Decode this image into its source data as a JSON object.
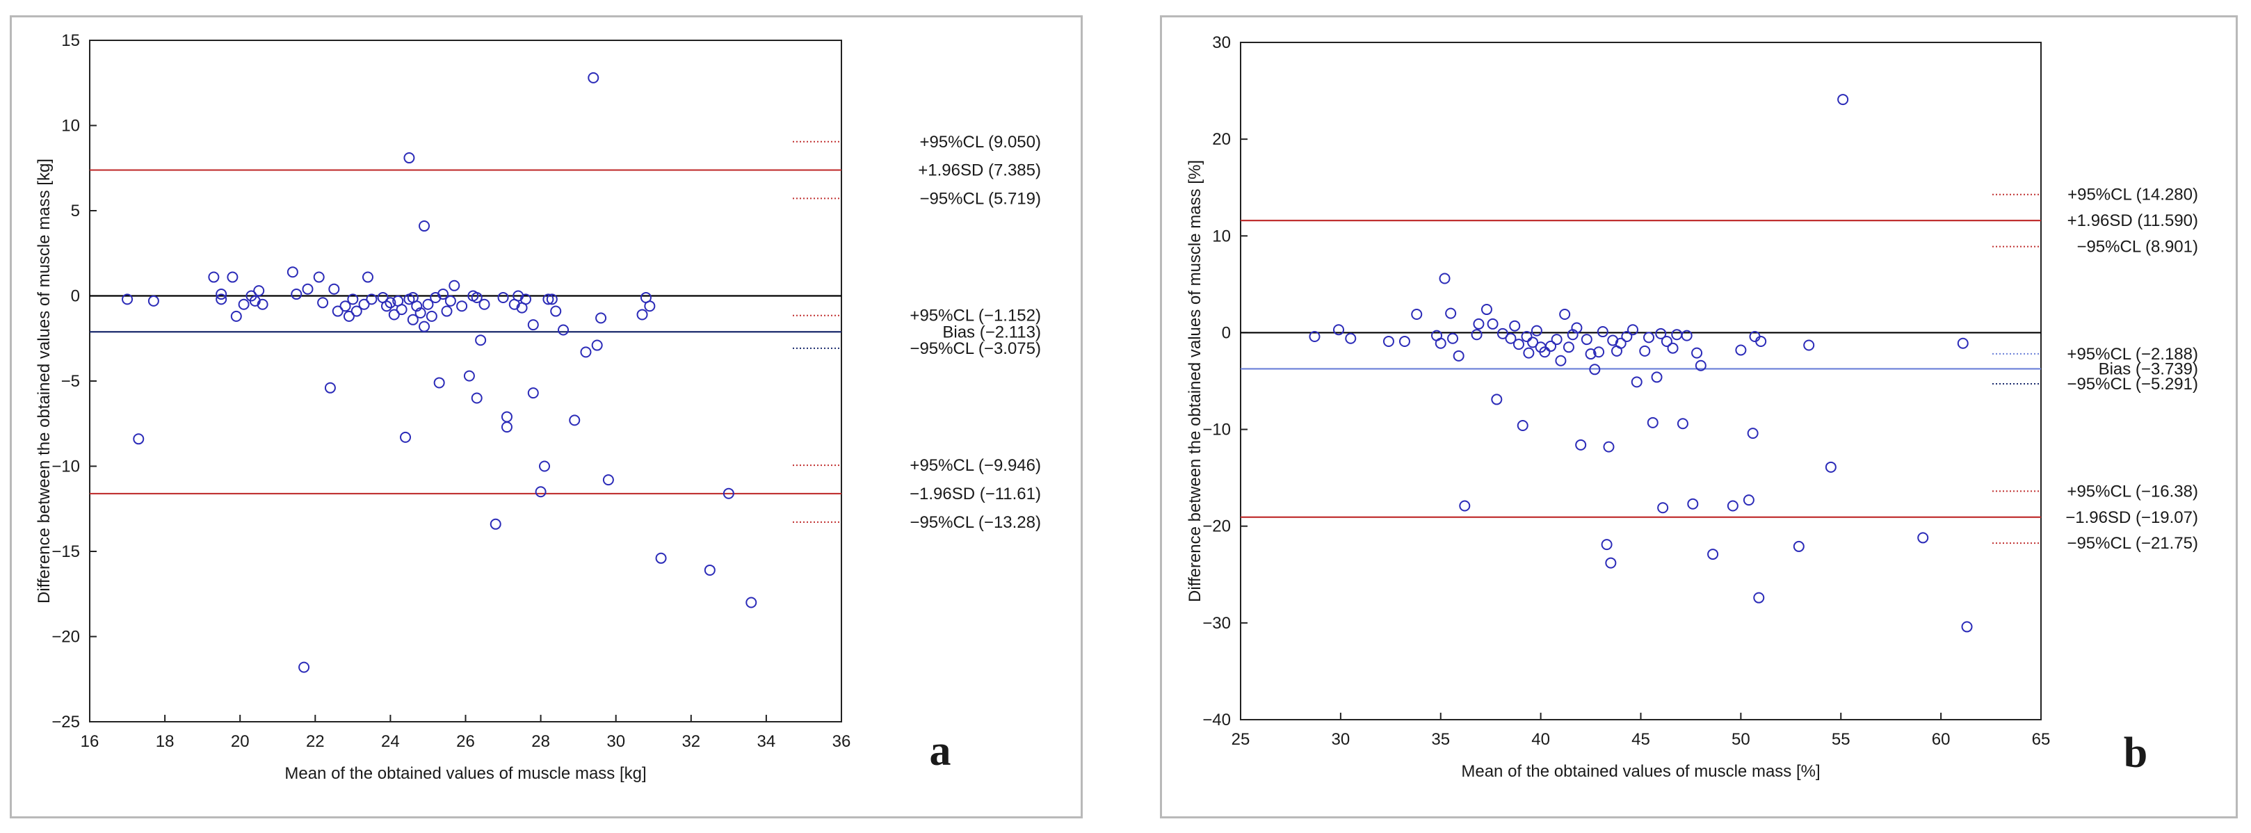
{
  "chart_data": [
    {
      "type": "scatter",
      "panel_label": "a",
      "xlabel": "Mean of the obtained values of muscle mass [kg]",
      "ylabel": "Difference between the obtained values of muscle mass [kg]",
      "xlim": [
        16,
        36
      ],
      "ylim": [
        -25,
        15
      ],
      "xticks": [
        16,
        18,
        20,
        22,
        24,
        26,
        28,
        30,
        32,
        34,
        36
      ],
      "yticks": [
        15,
        10,
        5,
        0,
        -5,
        -10,
        -15,
        -20,
        -25
      ],
      "grid": false,
      "colors": {
        "points": "#2b2bb8",
        "limits": "#c03030",
        "bias": "#1a2a6c",
        "zero": "#000000"
      },
      "lines": [
        {
          "name": "upper-limit",
          "y": 7.385,
          "kind": "limit"
        },
        {
          "name": "zero",
          "y": 0,
          "kind": "zero"
        },
        {
          "name": "bias",
          "y": -2.113,
          "kind": "bias"
        },
        {
          "name": "lower-limit",
          "y": -11.61,
          "kind": "limit"
        }
      ],
      "ci_markers": [
        {
          "y": 9.05,
          "color": "#c03030"
        },
        {
          "y": 5.719,
          "color": "#c03030"
        },
        {
          "y": -1.152,
          "color": "#c03030"
        },
        {
          "y": -3.075,
          "color": "#1a2a6c"
        },
        {
          "y": -9.946,
          "color": "#c03030"
        },
        {
          "y": -13.28,
          "color": "#c03030"
        }
      ],
      "annotations": [
        {
          "text": "+95%CL (9.050)",
          "y": 9.05
        },
        {
          "text": "+1.96SD (7.385)",
          "y": 7.385
        },
        {
          "text": "−95%CL (5.719)",
          "y": 5.719
        },
        {
          "text": "+95%CL (−1.152)",
          "y": -1.152
        },
        {
          "text": "Bias (−2.113)",
          "y": -2.113
        },
        {
          "text": "−95%CL (−3.075)",
          "y": -3.075
        },
        {
          "text": "+95%CL (−9.946)",
          "y": -9.946
        },
        {
          "text": "−1.96SD (−11.61)",
          "y": -11.61
        },
        {
          "text": "−95%CL (−13.28)",
          "y": -13.28
        }
      ],
      "points": [
        [
          17.0,
          -0.2
        ],
        [
          17.3,
          -8.4
        ],
        [
          17.7,
          -0.3
        ],
        [
          19.3,
          1.1
        ],
        [
          19.5,
          0.1
        ],
        [
          19.5,
          -0.2
        ],
        [
          19.8,
          1.1
        ],
        [
          19.9,
          -1.2
        ],
        [
          20.1,
          -0.5
        ],
        [
          20.3,
          0.0
        ],
        [
          20.4,
          -0.3
        ],
        [
          20.5,
          0.3
        ],
        [
          20.6,
          -0.5
        ],
        [
          21.4,
          1.4
        ],
        [
          21.5,
          0.1
        ],
        [
          21.8,
          0.4
        ],
        [
          21.7,
          -21.8
        ],
        [
          22.1,
          1.1
        ],
        [
          22.2,
          -0.4
        ],
        [
          22.4,
          -5.4
        ],
        [
          22.5,
          0.4
        ],
        [
          22.6,
          -0.9
        ],
        [
          22.8,
          -0.6
        ],
        [
          22.9,
          -1.2
        ],
        [
          23.0,
          -0.2
        ],
        [
          23.1,
          -0.9
        ],
        [
          23.3,
          -0.5
        ],
        [
          23.4,
          1.1
        ],
        [
          23.5,
          -0.2
        ],
        [
          23.8,
          -0.1
        ],
        [
          23.9,
          -0.6
        ],
        [
          24.0,
          -0.4
        ],
        [
          24.1,
          -1.1
        ],
        [
          24.2,
          -0.3
        ],
        [
          24.3,
          -0.8
        ],
        [
          24.4,
          -8.3
        ],
        [
          24.5,
          -0.2
        ],
        [
          24.5,
          8.1
        ],
        [
          24.6,
          -0.1
        ],
        [
          24.6,
          -1.4
        ],
        [
          24.7,
          -0.6
        ],
        [
          24.8,
          -1.0
        ],
        [
          24.9,
          -1.8
        ],
        [
          24.9,
          4.1
        ],
        [
          25.0,
          -0.5
        ],
        [
          25.1,
          -1.2
        ],
        [
          25.2,
          -0.1
        ],
        [
          25.3,
          -5.1
        ],
        [
          25.4,
          0.1
        ],
        [
          25.5,
          -0.9
        ],
        [
          25.6,
          -0.3
        ],
        [
          25.7,
          0.6
        ],
        [
          25.9,
          -0.6
        ],
        [
          26.1,
          -4.7
        ],
        [
          26.2,
          0.0
        ],
        [
          26.3,
          -0.1
        ],
        [
          26.3,
          -6.0
        ],
        [
          26.4,
          -2.6
        ],
        [
          26.5,
          -0.5
        ],
        [
          26.8,
          -13.4
        ],
        [
          27.0,
          -0.1
        ],
        [
          27.1,
          -7.1
        ],
        [
          27.1,
          -7.7
        ],
        [
          27.3,
          -0.5
        ],
        [
          27.4,
          0.0
        ],
        [
          27.5,
          -0.7
        ],
        [
          27.6,
          -0.2
        ],
        [
          27.8,
          -1.7
        ],
        [
          27.8,
          -5.7
        ],
        [
          28.0,
          -11.5
        ],
        [
          28.1,
          -10.0
        ],
        [
          28.2,
          -0.2
        ],
        [
          28.3,
          -0.2
        ],
        [
          28.4,
          -0.9
        ],
        [
          28.6,
          -2.0
        ],
        [
          28.9,
          -7.3
        ],
        [
          29.2,
          -3.3
        ],
        [
          29.4,
          12.8
        ],
        [
          29.5,
          -2.9
        ],
        [
          29.6,
          -1.3
        ],
        [
          29.8,
          -10.8
        ],
        [
          30.7,
          -1.1
        ],
        [
          30.8,
          -0.1
        ],
        [
          30.9,
          -0.6
        ],
        [
          31.2,
          -15.4
        ],
        [
          32.5,
          -16.1
        ],
        [
          33.0,
          -11.6
        ],
        [
          33.6,
          -18.0
        ]
      ],
      "title": ""
    },
    {
      "type": "scatter",
      "panel_label": "b",
      "xlabel": "Mean of the obtained values of muscle mass [%]",
      "ylabel": "Difference between the obtained values of muscle mass [%]",
      "xlim": [
        25,
        65
      ],
      "ylim": [
        -40,
        30
      ],
      "xticks": [
        25,
        30,
        35,
        40,
        45,
        50,
        55,
        60,
        65
      ],
      "yticks": [
        30,
        20,
        10,
        0,
        -10,
        -20,
        -30,
        -40
      ],
      "grid": false,
      "colors": {
        "points": "#2b2bb8",
        "limits": "#c03030",
        "bias": "#6a7fd8",
        "zero": "#000000"
      },
      "lines": [
        {
          "name": "upper-limit",
          "y": 11.59,
          "kind": "limit"
        },
        {
          "name": "zero",
          "y": 0,
          "kind": "zero"
        },
        {
          "name": "bias",
          "y": -3.739,
          "kind": "bias"
        },
        {
          "name": "lower-limit",
          "y": -19.07,
          "kind": "limit"
        }
      ],
      "ci_markers": [
        {
          "y": 14.28,
          "color": "#c03030"
        },
        {
          "y": 8.901,
          "color": "#c03030"
        },
        {
          "y": -2.188,
          "color": "#6a7fd8"
        },
        {
          "y": -5.291,
          "color": "#1a2a6c"
        },
        {
          "y": -16.38,
          "color": "#c03030"
        },
        {
          "y": -21.75,
          "color": "#c03030"
        }
      ],
      "annotations": [
        {
          "text": "+95%CL (14.280)",
          "y": 14.28
        },
        {
          "text": "+1.96SD (11.590)",
          "y": 11.59
        },
        {
          "text": "−95%CL (8.901)",
          "y": 8.901
        },
        {
          "text": "+95%CL (−2.188)",
          "y": -2.188
        },
        {
          "text": "Bias (−3.739)",
          "y": -3.739
        },
        {
          "text": "−95%CL (−5.291)",
          "y": -5.291
        },
        {
          "text": "+95%CL (−16.38)",
          "y": -16.38
        },
        {
          "text": "−1.96SD (−19.07)",
          "y": -19.07
        },
        {
          "text": "−95%CL (−21.75)",
          "y": -21.75
        }
      ],
      "points": [
        [
          28.7,
          -0.4
        ],
        [
          29.9,
          0.3
        ],
        [
          30.5,
          -0.6
        ],
        [
          32.4,
          -0.9
        ],
        [
          33.2,
          -0.9
        ],
        [
          33.8,
          1.9
        ],
        [
          34.8,
          -0.3
        ],
        [
          35.0,
          -1.1
        ],
        [
          35.2,
          5.6
        ],
        [
          35.5,
          2.0
        ],
        [
          35.6,
          -0.6
        ],
        [
          35.9,
          -2.4
        ],
        [
          36.2,
          -17.9
        ],
        [
          36.8,
          -0.2
        ],
        [
          36.9,
          0.9
        ],
        [
          37.3,
          2.4
        ],
        [
          37.6,
          0.9
        ],
        [
          37.8,
          -6.9
        ],
        [
          38.1,
          -0.1
        ],
        [
          38.5,
          -0.6
        ],
        [
          38.7,
          0.7
        ],
        [
          38.9,
          -1.2
        ],
        [
          39.1,
          -9.6
        ],
        [
          39.3,
          -0.4
        ],
        [
          39.4,
          -2.1
        ],
        [
          39.6,
          -1.0
        ],
        [
          39.8,
          0.2
        ],
        [
          40.0,
          -1.5
        ],
        [
          40.2,
          -2.0
        ],
        [
          40.5,
          -1.4
        ],
        [
          40.8,
          -0.7
        ],
        [
          41.0,
          -2.9
        ],
        [
          41.2,
          1.9
        ],
        [
          41.4,
          -1.5
        ],
        [
          41.6,
          -0.2
        ],
        [
          41.8,
          0.5
        ],
        [
          42.0,
          -11.6
        ],
        [
          42.3,
          -0.7
        ],
        [
          42.5,
          -2.2
        ],
        [
          42.7,
          -3.8
        ],
        [
          42.9,
          -2.0
        ],
        [
          43.1,
          0.1
        ],
        [
          43.3,
          -21.9
        ],
        [
          43.5,
          -23.8
        ],
        [
          43.4,
          -11.8
        ],
        [
          43.6,
          -0.8
        ],
        [
          43.8,
          -1.9
        ],
        [
          44.0,
          -1.1
        ],
        [
          44.3,
          -0.4
        ],
        [
          44.6,
          0.3
        ],
        [
          44.8,
          -5.1
        ],
        [
          45.2,
          -1.9
        ],
        [
          45.4,
          -0.5
        ],
        [
          45.6,
          -9.3
        ],
        [
          45.8,
          -4.6
        ],
        [
          46.0,
          -0.1
        ],
        [
          46.1,
          -18.1
        ],
        [
          46.3,
          -0.9
        ],
        [
          46.6,
          -1.6
        ],
        [
          46.8,
          -0.2
        ],
        [
          47.1,
          -9.4
        ],
        [
          47.3,
          -0.3
        ],
        [
          47.6,
          -17.7
        ],
        [
          47.8,
          -2.1
        ],
        [
          48.0,
          -3.4
        ],
        [
          48.6,
          -22.9
        ],
        [
          49.6,
          -17.9
        ],
        [
          50.0,
          -1.8
        ],
        [
          50.4,
          -17.3
        ],
        [
          50.6,
          -10.4
        ],
        [
          50.7,
          -0.4
        ],
        [
          50.9,
          -27.4
        ],
        [
          51.0,
          -0.9
        ],
        [
          52.9,
          -22.1
        ],
        [
          53.4,
          -1.3
        ],
        [
          54.5,
          -13.9
        ],
        [
          55.1,
          24.1
        ],
        [
          59.1,
          -21.2
        ],
        [
          61.1,
          -1.1
        ],
        [
          61.3,
          -30.4
        ]
      ],
      "title": ""
    }
  ]
}
